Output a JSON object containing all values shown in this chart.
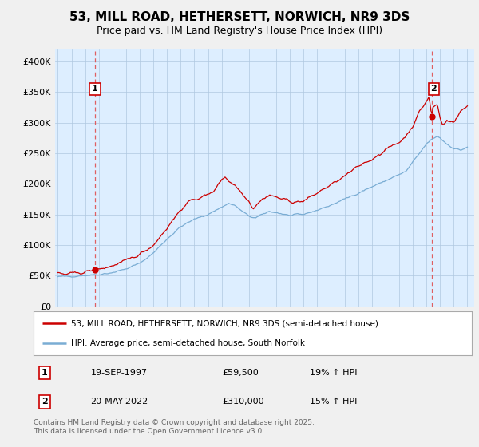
{
  "title": "53, MILL ROAD, HETHERSETT, NORWICH, NR9 3DS",
  "subtitle": "Price paid vs. HM Land Registry's House Price Index (HPI)",
  "legend_line1": "53, MILL ROAD, HETHERSETT, NORWICH, NR9 3DS (semi-detached house)",
  "legend_line2": "HPI: Average price, semi-detached house, South Norfolk",
  "sale1_date": "19-SEP-1997",
  "sale1_price": "£59,500",
  "sale1_hpi": "19% ↑ HPI",
  "sale2_date": "20-MAY-2022",
  "sale2_price": "£310,000",
  "sale2_hpi": "15% ↑ HPI",
  "footnote": "Contains HM Land Registry data © Crown copyright and database right 2025.\nThis data is licensed under the Open Government Licence v3.0.",
  "red_color": "#cc0000",
  "blue_color": "#7aadd4",
  "background_color": "#f0f0f0",
  "plot_bg_color": "#ddeeff",
  "sale1_x": 1997.72,
  "sale1_y": 59500,
  "sale2_x": 2022.38,
  "sale2_y": 310000,
  "ylim": [
    0,
    420000
  ],
  "xlim_left": 1994.8,
  "xlim_right": 2025.5
}
